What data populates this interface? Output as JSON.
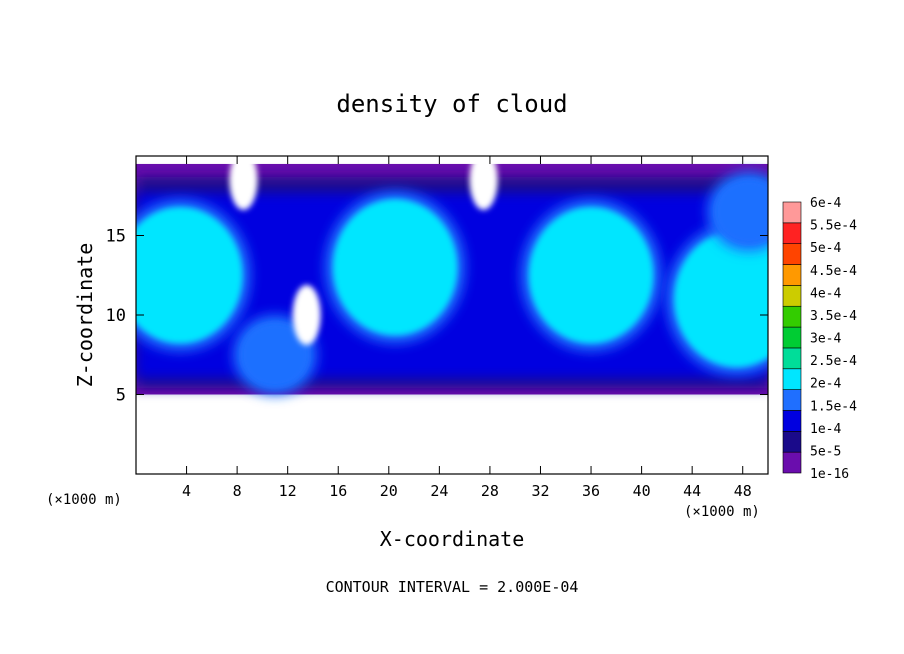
{
  "chart_data": {
    "type": "heatmap",
    "title": "density of cloud",
    "xlabel": "X-coordinate",
    "ylabel": "Z-coordinate",
    "x_unit_left": "(×1000 m)",
    "x_unit_right": "(×1000 m)",
    "footer": "CONTOUR INTERVAL = 2.000E-04",
    "xlim": [
      0,
      50
    ],
    "ylim": [
      0,
      20
    ],
    "x_ticks": [
      4,
      8,
      12,
      16,
      20,
      24,
      28,
      32,
      36,
      40,
      44,
      48
    ],
    "y_ticks": [
      5,
      10,
      15
    ],
    "colorbar": {
      "labels": [
        "1e-16",
        "5e-5",
        "1e-4",
        "1.5e-4",
        "2e-4",
        "2.5e-4",
        "3e-4",
        "3.5e-4",
        "4e-4",
        "4.5e-4",
        "5e-4",
        "5.5e-4",
        "6e-4"
      ],
      "colors": [
        "#6a0dad",
        "#1a0a8a",
        "#0000e0",
        "#1f6fff",
        "#00e6ff",
        "#00dd99",
        "#00cc33",
        "#33cc00",
        "#cccc00",
        "#ff9900",
        "#ff4400",
        "#ff2222",
        "#ff9999"
      ]
    },
    "field": {
      "cloud_base_z": 5,
      "cloud_top_z": 19.5,
      "cells": [
        {
          "x": 3.5,
          "z": 12.5,
          "level": "2e-4"
        },
        {
          "x": 20.5,
          "z": 13.0,
          "level": "2e-4"
        },
        {
          "x": 36.0,
          "z": 12.5,
          "level": "2e-4"
        },
        {
          "x": 47.5,
          "z": 11.0,
          "level": "2e-4"
        },
        {
          "x": 11.0,
          "z": 7.5,
          "level": "1.5e-4"
        },
        {
          "x": 48.5,
          "z": 16.5,
          "level": "1.5e-4"
        }
      ],
      "empty_regions": [
        {
          "x": 13.5,
          "z": 10.0,
          "level": "0"
        },
        {
          "x": 27.5,
          "z": 18.5,
          "level": "0"
        },
        {
          "x": 8.5,
          "z": 18.5,
          "level": "0"
        }
      ]
    }
  }
}
